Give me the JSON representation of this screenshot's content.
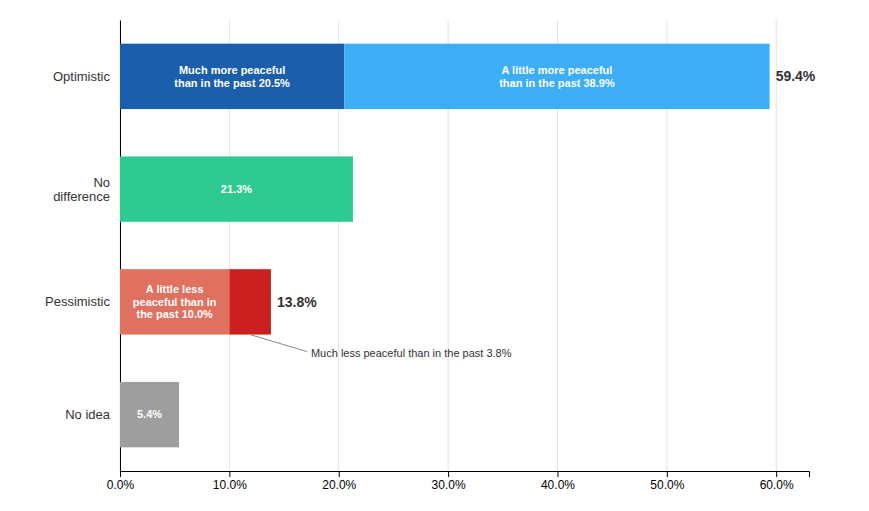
{
  "chart_data": {
    "type": "bar",
    "orientation": "horizontal",
    "stacked": true,
    "data_labels": true,
    "grid": true,
    "categories": [
      "Optimistic",
      "No\ndifference",
      "Pessimistic",
      "No idea"
    ],
    "series": [
      {
        "values": [
          20.5,
          21.3,
          10.0,
          5.4
        ],
        "colors": [
          "#1b5eab",
          "#2ec990",
          "#e07060",
          "#9e9e9e"
        ],
        "value_labels": [
          "Much more peaceful\nthan in the past 20.5%",
          "21.3%",
          "A little less\npeaceful than in\nthe past 10.0%",
          "5.4%"
        ]
      },
      {
        "values": [
          38.9,
          null,
          3.8,
          null
        ],
        "colors": [
          "#3daef5",
          null,
          "#cc2020",
          null
        ],
        "value_labels": [
          "A little more peaceful\nthan in the past 38.9%",
          null,
          "Much less peaceful than in the past 3.8%",
          null
        ]
      }
    ],
    "totals": [
      59.4,
      null,
      13.8,
      null
    ],
    "total_labels": [
      "59.4%",
      null,
      "13.8%",
      null
    ],
    "xlim": [
      0,
      63
    ],
    "xticks": [
      {
        "value": 0,
        "label": "0.0%"
      },
      {
        "value": 10,
        "label": "10.0%"
      },
      {
        "value": 20,
        "label": "20.0%"
      },
      {
        "value": 30,
        "label": "30.0%"
      },
      {
        "value": 40,
        "label": "40.0%"
      },
      {
        "value": 50,
        "label": "50.0%"
      },
      {
        "value": 60,
        "label": "60.0%"
      }
    ]
  }
}
